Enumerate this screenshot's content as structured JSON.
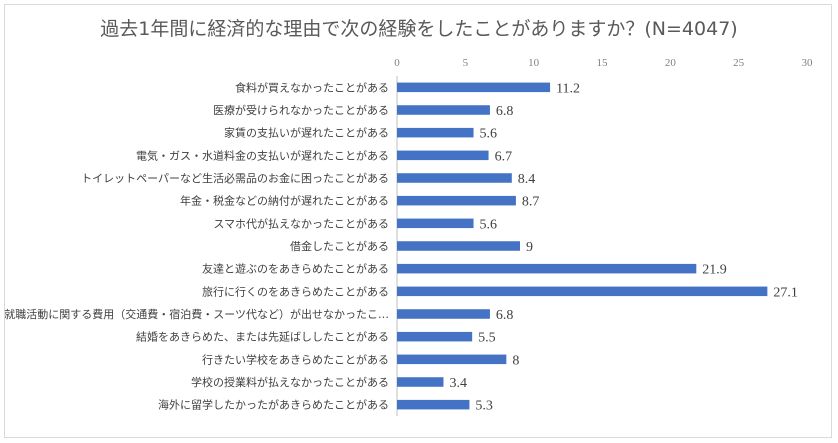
{
  "chart_data": {
    "type": "bar",
    "orientation": "horizontal",
    "title": "過去1年間に経済的な理由で次の経験をしたことがありますか？(N=4047)",
    "xlim": [
      0,
      30
    ],
    "xticks": [
      0,
      5,
      10,
      15,
      20,
      25,
      30
    ],
    "axis_position": "top",
    "grid": false,
    "bar_color": "#4472c4",
    "categories": [
      "食料が買えなかったことがある",
      "医療が受けられなかったことがある",
      "家賃の支払いが遅れたことがある",
      "電気・ガス・水道料金の支払いが遅れたことがある",
      "トイレットペーパーなど生活必需品のお金に困ったことがある",
      "年金・税金などの納付が遅れたことがある",
      "スマホ代が払えなかったことがある",
      "借金したことがある",
      "友達と遊ぶのをあきらめたことがある",
      "旅行に行くのをあきらめたことがある",
      "就職活動に関する費用（交通費・宿泊費・スーツ代など）が出せなかったこ…",
      "結婚をあきらめた、または先延ばししたことがある",
      "行きたい学校をあきらめたことがある",
      "学校の授業料が払えなかったことがある",
      "海外に留学したかったがあきらめたことがある"
    ],
    "values": [
      11.2,
      6.8,
      5.6,
      6.7,
      8.4,
      8.7,
      5.6,
      9,
      21.9,
      27.1,
      6.8,
      5.5,
      8,
      3.4,
      5.3
    ]
  }
}
